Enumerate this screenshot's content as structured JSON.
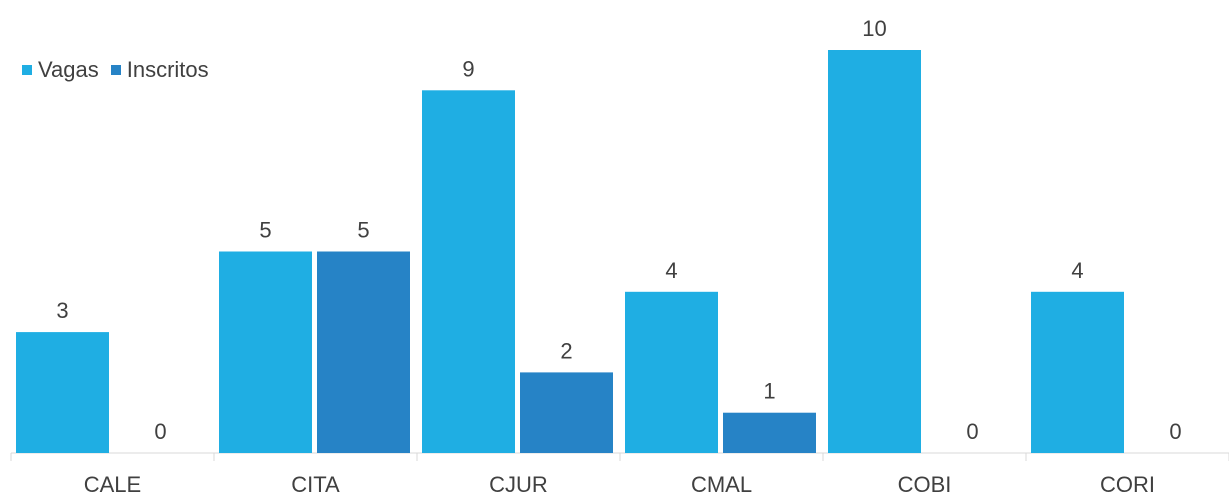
{
  "chart_data": {
    "type": "bar",
    "categories": [
      "CALE",
      "CITA",
      "CJUR",
      "CMAL",
      "COBI",
      "CORI"
    ],
    "series": [
      {
        "name": "Vagas",
        "color": "#1FAEE3",
        "values": [
          3,
          5,
          9,
          4,
          10,
          4
        ]
      },
      {
        "name": "Inscritos",
        "color": "#2683C6",
        "values": [
          0,
          5,
          2,
          1,
          0,
          0
        ]
      }
    ],
    "ylim": [
      0,
      10
    ],
    "grid": false,
    "legend_position": "top-left",
    "data_labels": true
  }
}
